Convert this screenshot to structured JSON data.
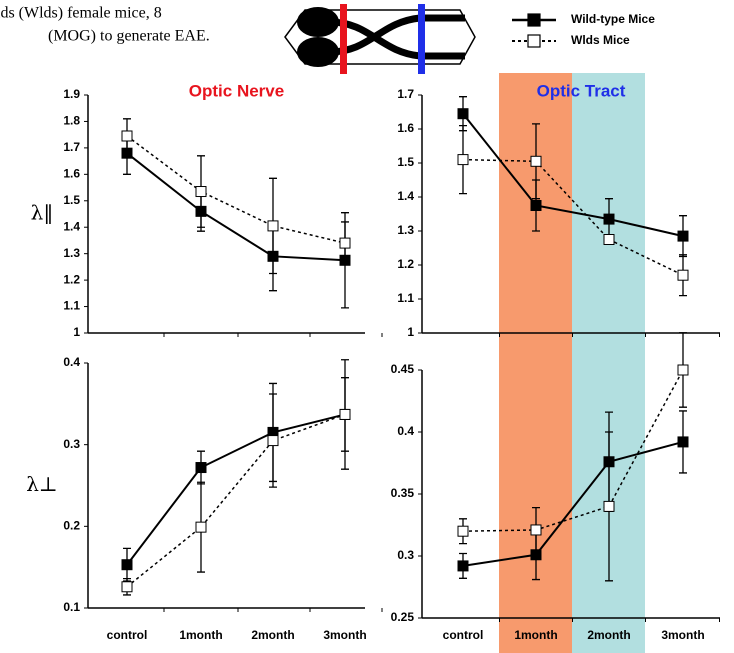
{
  "caption": [
    "lds (Wlds) female mice, 8",
    "(MOG) to generate EAE."
  ],
  "chart_data": [
    {
      "type": "line",
      "title": "Optic Nerve",
      "title_color": "#e8141e",
      "ylabel": "λ‖",
      "categories": [
        null,
        null,
        null,
        null
      ],
      "ylim": [
        1,
        1.9
      ],
      "yticks": [
        1,
        1.1,
        1.2,
        1.3,
        1.4,
        1.5,
        1.6,
        1.7,
        1.8,
        1.9
      ],
      "series": [
        {
          "name": "Wild-type Mice",
          "color": "#000000",
          "line_style": "solid",
          "marker_fill": "#000000",
          "values": [
            1.68,
            1.46,
            1.29,
            1.275
          ],
          "errors": [
            0.08,
            0.075,
            0.13,
            0.18
          ]
        },
        {
          "name": "Wlds Mice",
          "color": "#000000",
          "line_style": "dotted",
          "marker_fill": "#ffffff",
          "values": [
            1.745,
            1.535,
            1.405,
            1.34
          ],
          "errors": [
            0.065,
            0.135,
            0.18,
            0.08
          ]
        }
      ]
    },
    {
      "type": "line",
      "title": "Optic Tract",
      "title_color": "#1f2fe8",
      "categories": [
        null,
        null,
        null,
        null
      ],
      "ylim": [
        1,
        1.7
      ],
      "yticks": [
        1,
        1.1,
        1.2,
        1.3,
        1.4,
        1.5,
        1.6,
        1.7
      ],
      "series": [
        {
          "name": "Wild-type Mice",
          "color": "#000000",
          "line_style": "solid",
          "marker_fill": "#000000",
          "values": [
            1.645,
            1.375,
            1.335,
            1.285
          ],
          "errors": [
            0.05,
            0.075,
            0.06,
            0.06
          ]
        },
        {
          "name": "Wlds Mice",
          "color": "#000000",
          "line_style": "dotted",
          "marker_fill": "#ffffff",
          "values": [
            1.51,
            1.505,
            1.275,
            1.17
          ],
          "errors": [
            0.1,
            0.11,
            0.01,
            0.06
          ]
        }
      ]
    },
    {
      "type": "line",
      "ylabel": "λ⊥",
      "categories": [
        "control",
        "1month",
        "2month",
        "3month"
      ],
      "ylim": [
        0.1,
        0.4
      ],
      "yticks": [
        0.1,
        0.2,
        0.3,
        0.4
      ],
      "series": [
        {
          "name": "Wild-type Mice",
          "color": "#000000",
          "line_style": "solid",
          "marker_fill": "#000000",
          "values": [
            0.153,
            0.272,
            0.315,
            0.337
          ],
          "errors": [
            0.02,
            0.02,
            0.06,
            0.045
          ]
        },
        {
          "name": "Wlds Mice",
          "color": "#000000",
          "line_style": "dotted",
          "marker_fill": "#ffffff",
          "values": [
            0.126,
            0.199,
            0.305,
            0.337
          ],
          "errors": [
            0.01,
            0.055,
            0.057,
            0.067
          ]
        }
      ]
    },
    {
      "type": "line",
      "categories": [
        "control",
        "1month",
        "2month",
        "3month"
      ],
      "ylim": [
        0.25,
        0.45
      ],
      "yticks": [
        0.25,
        0.3,
        0.35,
        0.4,
        0.45
      ],
      "series": [
        {
          "name": "Wild-type Mice",
          "color": "#000000",
          "line_style": "solid",
          "marker_fill": "#000000",
          "values": [
            0.292,
            0.301,
            0.376,
            0.392
          ],
          "errors": [
            0.01,
            0.02,
            0.04,
            0.025
          ]
        },
        {
          "name": "Wlds Mice",
          "color": "#000000",
          "line_style": "dotted",
          "marker_fill": "#ffffff",
          "values": [
            0.32,
            0.321,
            0.34,
            0.45
          ],
          "errors": [
            0.01,
            0.018,
            0.06,
            0.03
          ]
        }
      ]
    }
  ]
}
